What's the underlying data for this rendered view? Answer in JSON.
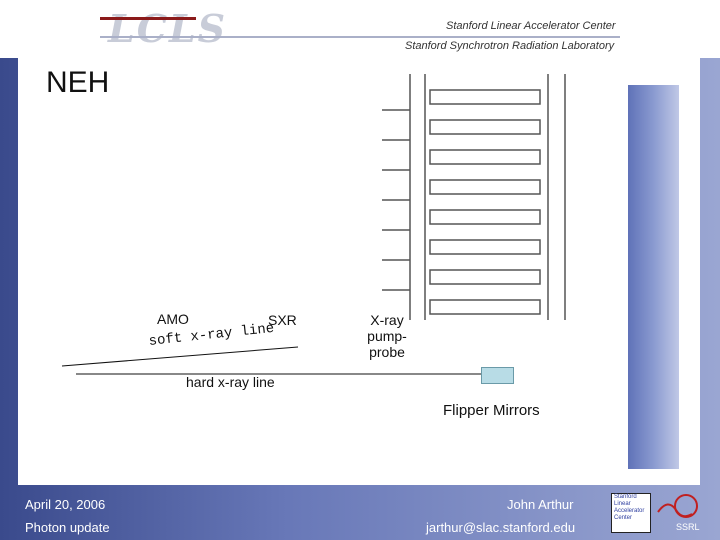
{
  "header": {
    "logo_text": "LCLS",
    "org_line1": "Stanford Linear Accelerator Center",
    "org_line2": "Stanford Synchrotron Radiation Laboratory"
  },
  "slide": {
    "title": "NEH",
    "labels": {
      "amo": "AMO",
      "sxr": "SXR",
      "xray_pump_probe": "X-ray pump-probe",
      "soft_line": "soft x-ray line",
      "hard_line": "hard x-ray line",
      "flipper_mirrors": "Flipper Mirrors"
    }
  },
  "footer": {
    "date": "April 20, 2006",
    "subtitle": "Photon update",
    "author": "John Arthur",
    "email": "jarthur@slac.stanford.edu",
    "slac_logo_lines": [
      "Stanford",
      "Linear",
      "Accelerator",
      "Center"
    ],
    "ssrl_logo_text": "SSRL"
  },
  "colors": {
    "background_gradient_start": "#3a4a8c",
    "background_gradient_end": "#9aa6d2",
    "flipper_mirror_fill": "#b8dce6"
  }
}
